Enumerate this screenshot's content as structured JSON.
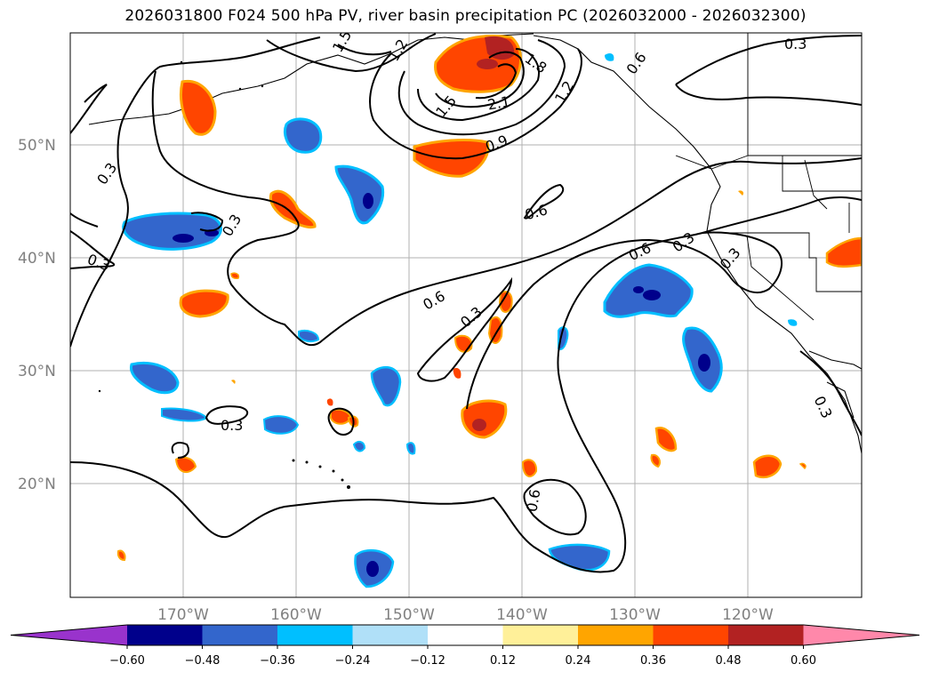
{
  "title": "2026031800 F024 500 hPa PV, river basin precipitation PC (2026032000 - 2026032300)",
  "lat_labels": [
    "50°N",
    "40°N",
    "30°N",
    "20°N"
  ],
  "lon_labels": [
    "170°W",
    "160°W",
    "150°W",
    "140°W",
    "130°W",
    "120°W"
  ],
  "contour_labels": {
    "c_0_3_a": "0.3",
    "c_0_3_b": "0.3",
    "c_0_3_c": "0.3",
    "c_0_3_d": "0.3",
    "c_0_3_e": "0.3",
    "c_0_3_f": "0.3",
    "c_0_3_g": "0.3",
    "c_0_3_h": "0.3",
    "c_0_3_i": "0.3",
    "c_0_6_a": "0.6",
    "c_0_6_b": "0.6",
    "c_0_6_c": "0.6",
    "c_0_6_d": "0.6",
    "c_0_6_e": "0.6",
    "c_0_9": "0.9",
    "c_1_2_a": "1.2",
    "c_1_2_b": "1.2",
    "c_1_5_a": "1.5",
    "c_1_5_b": "1.5",
    "c_1_8": "1.8",
    "c_2_1": "2.1"
  },
  "colorbar": {
    "colors": [
      "#9933cc",
      "#00008b",
      "#3366cc",
      "#00bfff",
      "#b0e0f8",
      "#ffffff",
      "#fff099",
      "#ffa500",
      "#ff4500",
      "#b22222",
      "#ff88aa"
    ],
    "tick_labels": [
      "−0.60",
      "−0.48",
      "−0.36",
      "−0.24",
      "−0.12",
      "0.12",
      "0.24",
      "0.36",
      "0.48",
      "0.60"
    ]
  }
}
